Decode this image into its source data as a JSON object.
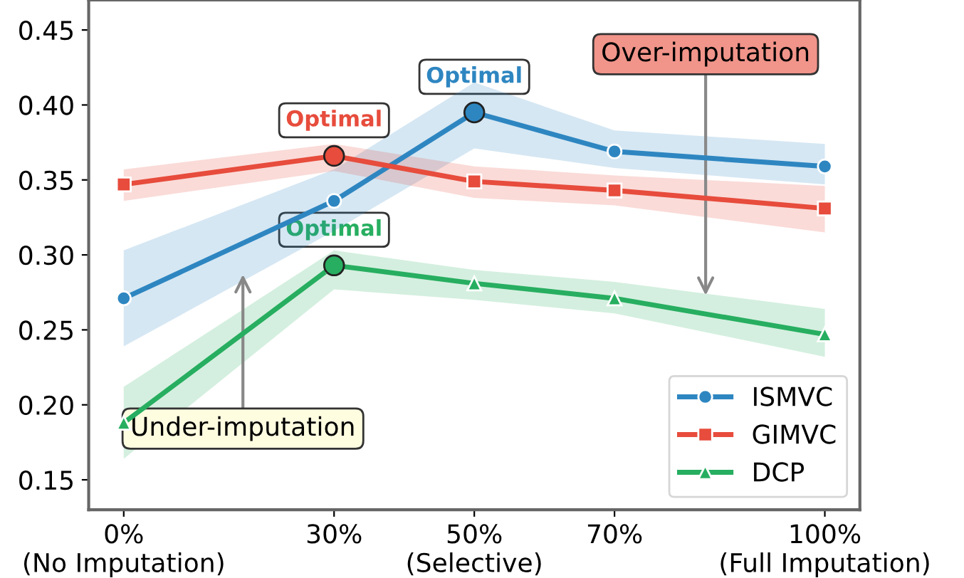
{
  "chart_data": {
    "type": "line",
    "x": [
      0,
      30,
      50,
      70,
      100
    ],
    "series": [
      {
        "name": "ISMVC",
        "color": "#2e86c1",
        "marker": "circle",
        "values": [
          0.271,
          0.336,
          0.395,
          0.369,
          0.359
        ],
        "lower": [
          0.239,
          0.316,
          0.371,
          0.358,
          0.347
        ],
        "upper": [
          0.303,
          0.357,
          0.415,
          0.383,
          0.374
        ]
      },
      {
        "name": "GIMVC",
        "color": "#e74c3c",
        "marker": "square",
        "values": [
          0.347,
          0.366,
          0.349,
          0.343,
          0.331
        ],
        "lower": [
          0.336,
          0.356,
          0.338,
          0.333,
          0.315
        ],
        "upper": [
          0.357,
          0.374,
          0.359,
          0.353,
          0.346
        ]
      },
      {
        "name": "DCP",
        "color": "#27ae60",
        "marker": "triangle",
        "values": [
          0.188,
          0.293,
          0.281,
          0.271,
          0.247
        ],
        "lower": [
          0.164,
          0.277,
          0.27,
          0.261,
          0.232
        ],
        "upper": [
          0.212,
          0.303,
          0.29,
          0.282,
          0.264
        ]
      }
    ],
    "xlim": [
      -5,
      105
    ],
    "xticks": [
      {
        "value": 0,
        "label": "0%\n(No Imputation)"
      },
      {
        "value": 30,
        "label": "30%"
      },
      {
        "value": 50,
        "label": "50%\n(Selective)"
      },
      {
        "value": 70,
        "label": "70%"
      },
      {
        "value": 100,
        "label": "100%\n(Full Imputation)"
      }
    ],
    "ylim": [
      0.13,
      0.47
    ],
    "yticks": [
      0.15,
      {
        "value": 0.2,
        "label": "0.20"
      },
      0.25,
      {
        "value": 0.3,
        "label": "0.30"
      },
      0.35,
      {
        "value": 0.4,
        "label": "0.40"
      },
      0.45
    ],
    "annotations": [
      {
        "text": "Optimal",
        "x": 50,
        "y": 0.395
      },
      {
        "text": "Optimal",
        "x": 30,
        "y": 0.366
      },
      {
        "text": "Optimal",
        "x": 30,
        "y": 0.293
      },
      {
        "text": "Under-imputation",
        "x": 17,
        "y": 0.287
      },
      {
        "text": "Over-imputation",
        "x": 83,
        "y": 0.273
      }
    ],
    "legend": "bottom right",
    "grid": false,
    "line_style": "solid"
  }
}
